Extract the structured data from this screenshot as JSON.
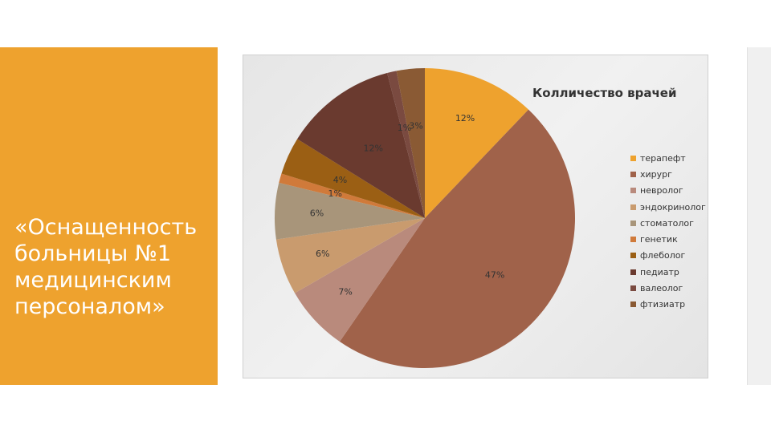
{
  "slide": {
    "title": "«Оснащенность больницы №1 медицинским персоналом»"
  },
  "colors": {
    "panel": "#eea22e",
    "background": "#ffffff"
  },
  "chart_data": {
    "type": "pie",
    "title": "Колличество врачей",
    "legend_position": "right",
    "categories": [
      "терапефт",
      "хирург",
      "невролог",
      "эндокринолог",
      "стоматолог",
      "генетик",
      "флеболог",
      "педиатр",
      "валеолог",
      "фтизиатр"
    ],
    "values": [
      12,
      47,
      7,
      6,
      6,
      1,
      4,
      12,
      1,
      3
    ],
    "data_labels": [
      "12%",
      "47%",
      "7%",
      "6%",
      "6%",
      "1%",
      "4%",
      "12%",
      "1%",
      "3%"
    ],
    "colors": [
      "#eea22e",
      "#a0624a",
      "#b98a7c",
      "#c99b6e",
      "#a8957a",
      "#d07a3a",
      "#9b5f14",
      "#6a3a2f",
      "#7a4a40",
      "#8a5a34"
    ]
  }
}
